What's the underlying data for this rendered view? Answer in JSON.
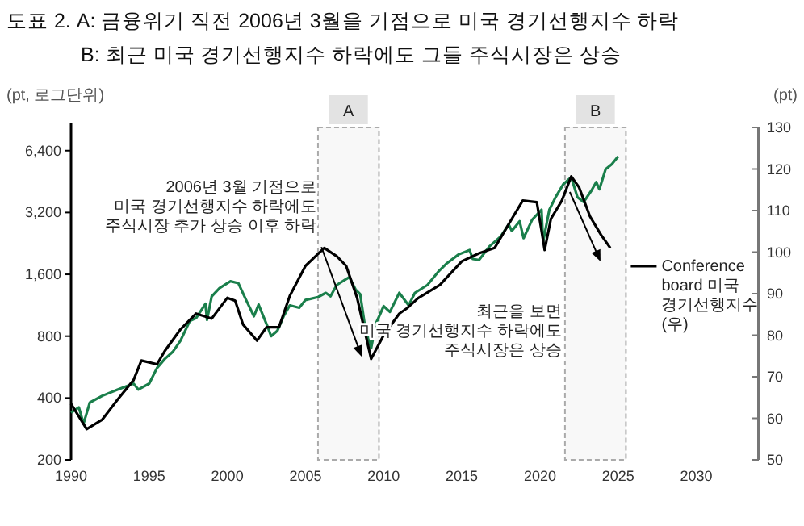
{
  "chart_data": {
    "type": "line",
    "title": "도표 2. A: 금융위기 직전 2006년 3월을 기점으로 미국 경기선행지수 하락",
    "subtitle": "B: 최근 미국 경기선행지수 하락에도 그들 주식시장은 상승",
    "ylabel": "(pt, 로그단위)",
    "y2label": "(pt)",
    "log": "y",
    "grid": false,
    "legend": "right",
    "xlim": [
      1990,
      2034
    ],
    "xticks": [
      1990,
      1995,
      2000,
      2005,
      2010,
      2015,
      2020,
      2025,
      2030
    ],
    "ylim": [
      200,
      8300
    ],
    "yticks": [
      200,
      400,
      800,
      {
        "value": 1600,
        "label": "1,600"
      },
      {
        "value": 3200,
        "label": "3,200"
      },
      {
        "value": 6400,
        "label": "6,400"
      }
    ],
    "y2lim": [
      50,
      130
    ],
    "y2ticks": [
      50,
      60,
      70,
      80,
      90,
      100,
      110,
      120,
      130
    ],
    "series": [
      {
        "color": "#1a7f4b",
        "x": [
          1990.0,
          1990.5,
          1990.8,
          1991.2,
          1992,
          1993,
          1994,
          1994.3,
          1995,
          1995.5,
          1996,
          1996.5,
          1997,
          1997.6,
          1998,
          1998.6,
          1998.7,
          1999,
          1999.5,
          2000.2,
          2000.7,
          2001.2,
          2001.7,
          2002,
          2002.6,
          2002.8,
          2003.2,
          2003.6,
          2004,
          2004.6,
          2005,
          2005.8,
          2006.3,
          2006.6,
          2007,
          2007.5,
          2007.8,
          2008.2,
          2008.5,
          2008.8,
          2009.2,
          2009.5,
          2010,
          2010.4,
          2011,
          2011.6,
          2012,
          2012.8,
          2013.5,
          2014,
          2014.8,
          2015.5,
          2015.7,
          2016.1,
          2016.8,
          2017.5,
          2018,
          2018.2,
          2018.7,
          2018.95,
          2019.5,
          2020.1,
          2020.2,
          2020.6,
          2021,
          2021.5,
          2022,
          2022.4,
          2022.8,
          2023.3,
          2023.6,
          2023.8,
          2024.2,
          2024.6,
          2025.0
        ],
        "values": [
          340,
          360,
          300,
          380,
          410,
          440,
          470,
          440,
          470,
          560,
          620,
          670,
          760,
          950,
          980,
          1150,
          960,
          1250,
          1370,
          1480,
          1450,
          1200,
          1000,
          1140,
          880,
          800,
          850,
          1000,
          1130,
          1100,
          1200,
          1240,
          1300,
          1250,
          1420,
          1500,
          1550,
          1350,
          1280,
          900,
          700,
          920,
          1120,
          1050,
          1300,
          1130,
          1300,
          1420,
          1650,
          1800,
          2000,
          2100,
          1900,
          1880,
          2200,
          2450,
          2800,
          2600,
          2900,
          2400,
          2950,
          3300,
          2300,
          3300,
          3800,
          4400,
          4750,
          3800,
          3600,
          4100,
          4500,
          4150,
          5200,
          5500,
          6000
        ]
      },
      {
        "name": "Conference board 미국 경기선행지수 (우)",
        "color": "#000000",
        "axis": "y2",
        "x": [
          1990,
          1991,
          1992,
          1993,
          1994,
          1994.5,
          1995.5,
          1996,
          1997,
          1998,
          1999,
          2000,
          2000.5,
          2001,
          2001.9,
          2002.5,
          2003.3,
          2004,
          2005,
          2006.2,
          2007,
          2007.6,
          2008.3,
          2009.2,
          2010,
          2011,
          2011.5,
          2012.2,
          2013.6,
          2015.0,
          2016.1,
          2017.1,
          2018.2,
          2018.9,
          2019.8,
          2020.2,
          2020.3,
          2020.7,
          2021.4,
          2022.0,
          2022.5,
          2023.2,
          2023.9,
          2024.5
        ],
        "values": [
          63.5,
          57.4,
          59.7,
          64.6,
          69.2,
          73.9,
          73,
          76.2,
          81.4,
          85.2,
          84,
          89,
          88.3,
          82.6,
          78.7,
          81.9,
          81.9,
          89.5,
          96.7,
          101,
          99,
          96.7,
          89,
          74.3,
          80,
          85.2,
          86.5,
          88.9,
          92.1,
          97.8,
          99.7,
          101,
          108,
          112.4,
          112,
          102.9,
          100.5,
          108,
          112.4,
          118.2,
          115.6,
          108.6,
          104.2,
          101
        ]
      }
    ],
    "bands": [
      {
        "axis": "x",
        "from": 2005.8,
        "to": 2009.7,
        "label": "A"
      },
      {
        "axis": "x",
        "from": 2021.6,
        "to": 2025.5,
        "label": "B"
      }
    ],
    "annotations": [
      {
        "text": "2006년 3월 기점으로\n미국 경기선행지수 하락에도\n주식시장 추가 상승 이후 하락",
        "x": 2008.6,
        "y": 635
      },
      "최근을 보면\n미국 경기선행지수 하락에도\n주식시장은 상승"
    ]
  }
}
